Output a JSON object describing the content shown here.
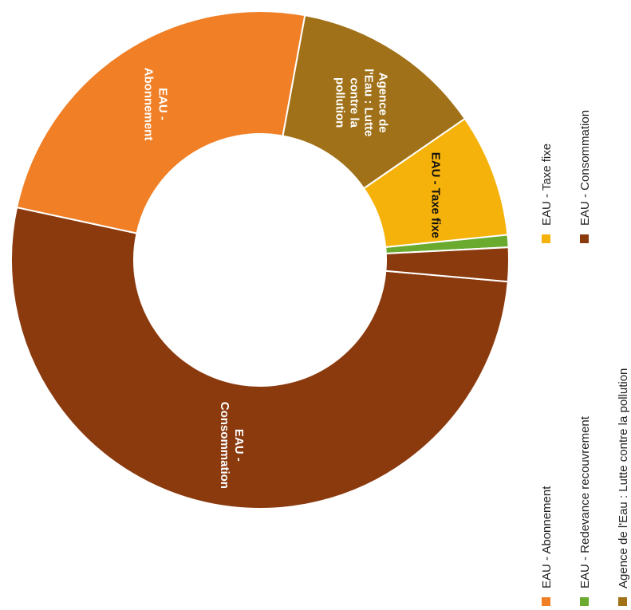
{
  "chart_data": {
    "type": "pie",
    "donut": true,
    "title": "",
    "start_clockwise_from": "top",
    "slices": [
      {
        "label": "EAU - Consommation",
        "value": 52.0,
        "color": "#8B3A0E",
        "text_lines": [
          "EAU -",
          "Consommation"
        ]
      },
      {
        "label": "EAU - Abonnement",
        "value": 24.5,
        "color": "#F07F26",
        "text_lines": [
          "EAU -",
          "Abonnement"
        ]
      },
      {
        "label": "Agence de l'Eau : Lutte contre la pollution",
        "value": 12.5,
        "color": "#A07118",
        "text_lines": [
          "Agence de",
          "l'Eau : Lutte",
          "contre la",
          "pollution"
        ]
      },
      {
        "label": "EAU - Taxe fixe",
        "value": 8.0,
        "color": "#F5B20A",
        "text_lines": [
          "EAU - Taxe fixe"
        ]
      },
      {
        "label": "EAU - Redevance recouvrement",
        "value": 0.8,
        "color": "#6AAA2E",
        "text_lines": []
      },
      {
        "label": "EAU - Consommation",
        "value": 2.2,
        "color": "#8B3A0E",
        "text_lines": []
      }
    ],
    "legend": [
      {
        "label": "EAU - Abonnement",
        "color": "#F07F26"
      },
      {
        "label": "EAU - Redevance recouvrement",
        "color": "#6AAA2E"
      },
      {
        "label": "Agence de l'Eau : Lutte contre la pollution",
        "color": "#A07118"
      },
      {
        "label": "EAU - Taxe fixe",
        "color": "#F5B20A"
      },
      {
        "label": "EAU - Consommation",
        "color": "#8B3A0E"
      }
    ],
    "legend_placement": "right"
  }
}
